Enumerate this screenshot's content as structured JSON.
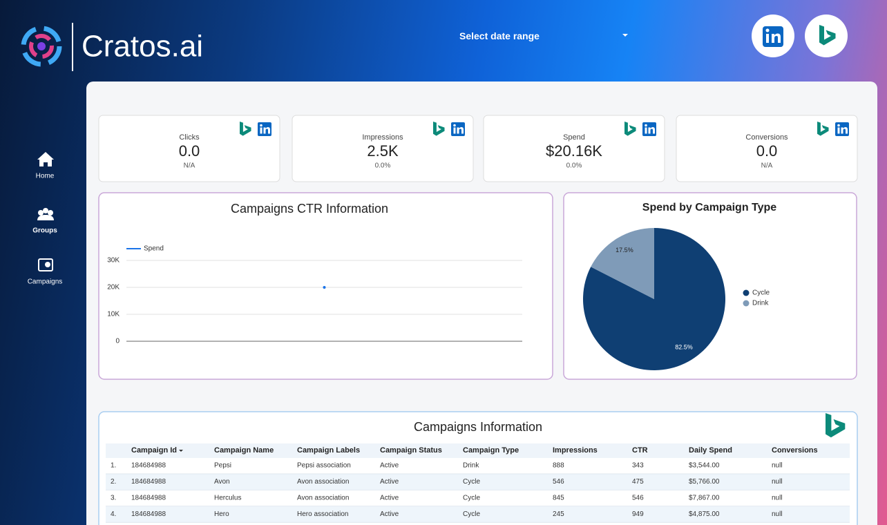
{
  "header": {
    "brand": "Cratos.ai",
    "date_range": "Select date range"
  },
  "nav": [
    "Home",
    "Groups",
    "Campaigns"
  ],
  "kpis": [
    {
      "label": "Clicks",
      "value": "0.0",
      "delta": "N/A"
    },
    {
      "label": "Impressions",
      "value": "2.5K",
      "delta": "0.0%"
    },
    {
      "label": "Spend",
      "value": "$20.16K",
      "delta": "0.0%"
    },
    {
      "label": "Conversions",
      "value": "0.0",
      "delta": "N/A"
    }
  ],
  "line_chart": {
    "type": "line",
    "title": "Campaigns CTR Information",
    "categories": [
      null
    ],
    "series": [
      {
        "name": "Spend",
        "color": "#1a73e8",
        "values": [
          20000
        ]
      }
    ],
    "ylim": [
      0,
      30000
    ],
    "yticks": [
      0,
      {
        "value": 10000,
        "label": "10K"
      },
      {
        "value": 20000,
        "label": "20K"
      },
      {
        "value": 30000,
        "label": "30K"
      }
    ],
    "grid": true
  },
  "pie_chart": {
    "type": "pie",
    "title": "Spend by Campaign Type",
    "categories": [
      "Cycle",
      "Drink"
    ],
    "values": [
      82.5,
      17.5
    ],
    "value_labels": [
      "82.5%",
      "17.5%"
    ],
    "colors": [
      "#0f3f73",
      "#7f9bb8"
    ],
    "legend": "right"
  },
  "table": {
    "title": "Campaigns Information",
    "columns": [
      "Campaign Id",
      "Campaign Name",
      "Campaign Labels",
      "Campaign Status",
      "Campaign Type",
      "Impressions",
      "CTR",
      "Daily Spend",
      "Conversions"
    ],
    "rows": [
      [
        "1.",
        "184684988",
        "Pepsi",
        "Pepsi association",
        "Active",
        "Drink",
        "888",
        "343",
        "$3,544.00",
        "null"
      ],
      [
        "2.",
        "184684988",
        "Avon",
        "Avon association",
        "Active",
        "Cycle",
        "546",
        "475",
        "$5,766.00",
        "null"
      ],
      [
        "3.",
        "184684988",
        "Herculus",
        "Avon association",
        "Active",
        "Cycle",
        "845",
        "546",
        "$7,867.00",
        "null"
      ],
      [
        "4.",
        "184684988",
        "Hero",
        "Hero association",
        "Active",
        "Cycle",
        "245",
        "949",
        "$4,875.00",
        "null"
      ]
    ]
  }
}
